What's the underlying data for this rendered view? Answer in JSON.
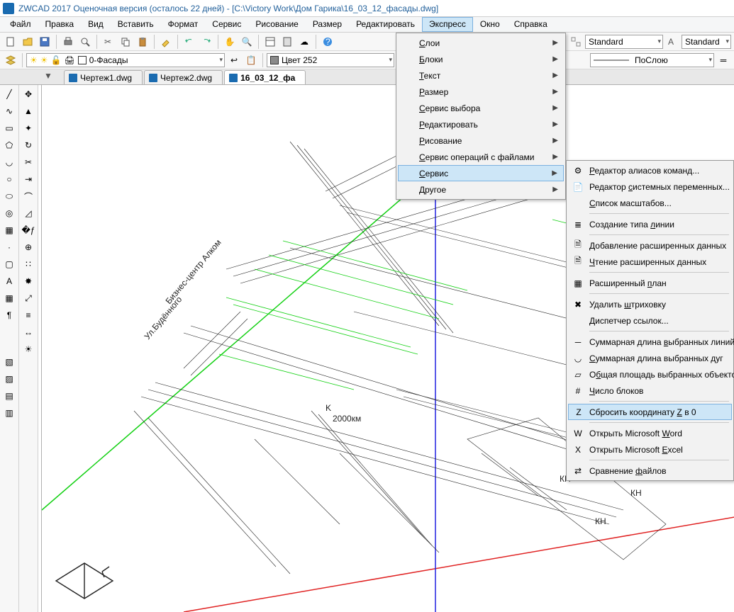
{
  "title": "ZWCAD 2017 Оценочная версия (осталось 22 дней) - [C:\\Victory Work\\Дом Гарика\\16_03_12_фасады.dwg]",
  "menubar": [
    "Файл",
    "Правка",
    "Вид",
    "Вставить",
    "Формат",
    "Сервис",
    "Рисование",
    "Размер",
    "Редактировать",
    "Экспресс",
    "Окно",
    "Справка"
  ],
  "menubar_open_index": 9,
  "layer_combo": "0-Фасады",
  "color_combo": "Цвет 252",
  "style_combo1": "Standard",
  "style_combo2": "Standard",
  "bylayer_combo": "ПоСлою",
  "tabs": [
    {
      "label": "Чертеж1.dwg",
      "active": false
    },
    {
      "label": "Чертеж2.dwg",
      "active": false
    },
    {
      "label": "16_03_12_фа",
      "active": true
    }
  ],
  "express_menu": [
    {
      "label": "Слои",
      "sub": true
    },
    {
      "label": "Блоки",
      "sub": true
    },
    {
      "label": "Текст",
      "sub": true
    },
    {
      "label": "Размер",
      "sub": true
    },
    {
      "label": "Сервис выбора",
      "sub": true
    },
    {
      "label": "Редактировать",
      "sub": true
    },
    {
      "label": "Рисование",
      "sub": true
    },
    {
      "label": "Сервис операций с файлами",
      "sub": true
    },
    {
      "label": "Сервис",
      "sub": true,
      "highlighted": true
    },
    {
      "label": "Другое",
      "sub": true
    }
  ],
  "service_submenu": [
    {
      "label": "Редактор алиасов команд...",
      "icon": "gear",
      "u": 0
    },
    {
      "label": "Редактор системных переменных...",
      "icon": "doc",
      "u": 9
    },
    {
      "label": "Список масштабов...",
      "icon": "",
      "u": 0
    },
    {
      "sep": true
    },
    {
      "label": "Создание типа линии",
      "icon": "lines",
      "u": 14
    },
    {
      "sep": true
    },
    {
      "label": "Добавление расширенных данных",
      "icon": "data",
      "u": 0
    },
    {
      "label": "Чтение расширенных данных",
      "icon": "data",
      "u": 0
    },
    {
      "sep": true
    },
    {
      "label": "Расширенный план",
      "icon": "grid",
      "u": 12
    },
    {
      "sep": true
    },
    {
      "label": "Удалить штриховку",
      "icon": "del",
      "u": 8
    },
    {
      "label": "Диспетчер ссылок...",
      "icon": "",
      "u": 0
    },
    {
      "sep": true
    },
    {
      "label": "Суммарная длина выбранных линий",
      "icon": "sline",
      "u": 16
    },
    {
      "label": "Суммарная длина выбранных дуг",
      "icon": "sarc",
      "u": 0
    },
    {
      "label": "Общая площадь выбранных объектов",
      "icon": "area",
      "u": 1
    },
    {
      "label": "Число блоков",
      "icon": "num",
      "u": 0
    },
    {
      "sep": true
    },
    {
      "label": "Сбросить координату Z в 0",
      "icon": "zero",
      "u": 20,
      "highlighted": true
    },
    {
      "sep": true
    },
    {
      "label": "Открыть Microsoft Word",
      "icon": "word",
      "u": 18
    },
    {
      "label": "Открыть Microsoft Excel",
      "icon": "excel",
      "u": 18
    },
    {
      "sep": true
    },
    {
      "label": "Сравнение файлов",
      "icon": "cmp",
      "u": 10
    }
  ],
  "left_tools_col1": [
    "line",
    "spline",
    "rect",
    "polygon",
    "arc",
    "circle",
    "ellipse",
    "donut",
    "hatch",
    "point",
    "region",
    "text",
    "table",
    "mtext"
  ],
  "left_tools_col2": [
    "move",
    "mirror",
    "grip",
    "rotate",
    "trim",
    "extend",
    "fillet",
    "chamfer",
    "break",
    "join",
    "array",
    "explode",
    "scale",
    "offset",
    "stretch",
    "sun"
  ],
  "left_extra_tools": [
    "layer1",
    "layer2",
    "layer3",
    "layer4"
  ],
  "colors": {
    "axis_green": "#11d011",
    "axis_red": "#e02222",
    "axis_blue": "#2222e0",
    "draft_black": "#222222",
    "annot_green": "#11d011",
    "canvas_bg": "#ffffff"
  }
}
